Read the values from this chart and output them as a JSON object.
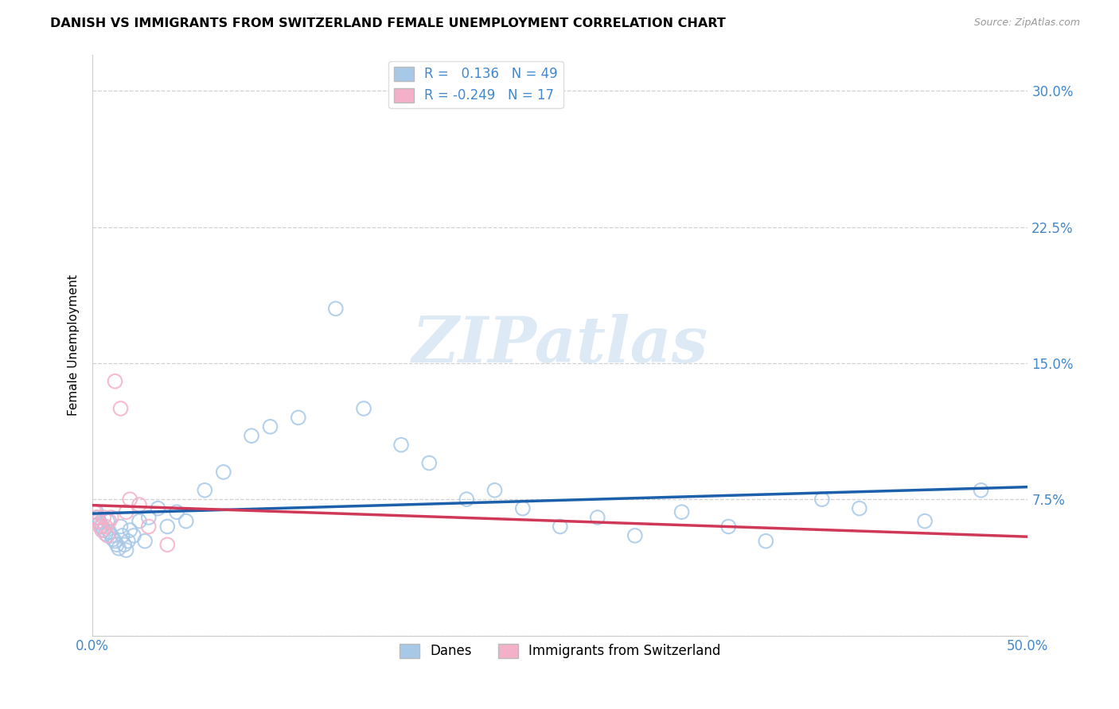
{
  "title": "DANISH VS IMMIGRANTS FROM SWITZERLAND FEMALE UNEMPLOYMENT CORRELATION CHART",
  "source": "Source: ZipAtlas.com",
  "ylabel": "Female Unemployment",
  "xlim": [
    0.0,
    0.5
  ],
  "ylim": [
    0.0,
    0.32
  ],
  "xticks": [
    0.0,
    0.1,
    0.2,
    0.3,
    0.4,
    0.5
  ],
  "xticklabels": [
    "0.0%",
    "",
    "",
    "",
    "",
    "50.0%"
  ],
  "yticks": [
    0.0,
    0.075,
    0.15,
    0.225,
    0.3
  ],
  "yticklabels_right": [
    "",
    "7.5%",
    "15.0%",
    "22.5%",
    "30.0%"
  ],
  "r_danish": 0.136,
  "n_danish": 49,
  "r_swiss": -0.249,
  "n_swiss": 17,
  "blue_scatter_color": "#a8c8e8",
  "pink_scatter_color": "#f4b0c8",
  "blue_line_color": "#1c5faa",
  "pink_line_color": "#d03858",
  "pink_line_dash_color": "#e890a8",
  "tick_color": "#4488cc",
  "grid_color": "#cccccc",
  "watermark_color": "#cce0f0",
  "danes_x": [
    0.002,
    0.003,
    0.004,
    0.005,
    0.006,
    0.007,
    0.008,
    0.009,
    0.01,
    0.011,
    0.012,
    0.013,
    0.014,
    0.015,
    0.016,
    0.017,
    0.018,
    0.019,
    0.02,
    0.022,
    0.025,
    0.028,
    0.03,
    0.035,
    0.04,
    0.045,
    0.05,
    0.06,
    0.07,
    0.085,
    0.095,
    0.11,
    0.13,
    0.145,
    0.165,
    0.18,
    0.2,
    0.215,
    0.23,
    0.25,
    0.27,
    0.29,
    0.315,
    0.34,
    0.36,
    0.39,
    0.41,
    0.445,
    0.475
  ],
  "danes_y": [
    0.068,
    0.065,
    0.062,
    0.06,
    0.058,
    0.056,
    0.063,
    0.057,
    0.055,
    0.053,
    0.052,
    0.05,
    0.048,
    0.06,
    0.055,
    0.05,
    0.047,
    0.052,
    0.058,
    0.055,
    0.063,
    0.052,
    0.065,
    0.07,
    0.06,
    0.068,
    0.063,
    0.08,
    0.09,
    0.11,
    0.115,
    0.12,
    0.18,
    0.125,
    0.105,
    0.095,
    0.075,
    0.08,
    0.07,
    0.06,
    0.065,
    0.055,
    0.068,
    0.06,
    0.052,
    0.075,
    0.07,
    0.063,
    0.08
  ],
  "swiss_x": [
    0.001,
    0.002,
    0.003,
    0.004,
    0.005,
    0.006,
    0.007,
    0.008,
    0.009,
    0.01,
    0.012,
    0.015,
    0.018,
    0.02,
    0.025,
    0.03,
    0.04
  ],
  "swiss_y": [
    0.068,
    0.065,
    0.063,
    0.06,
    0.058,
    0.065,
    0.06,
    0.055,
    0.063,
    0.065,
    0.14,
    0.125,
    0.068,
    0.075,
    0.072,
    0.06,
    0.05
  ]
}
